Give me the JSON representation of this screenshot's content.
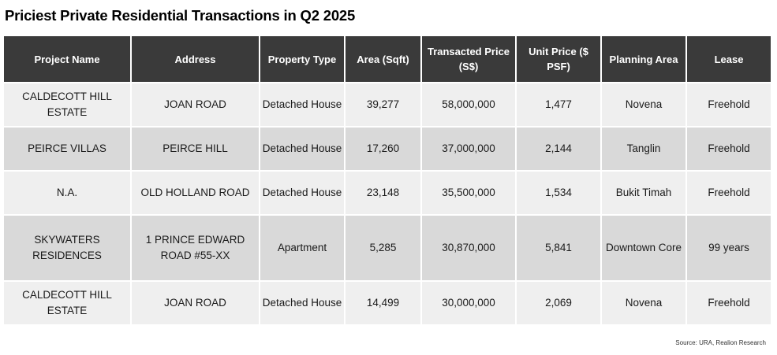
{
  "title": "Priciest Private Residential Transactions in Q2 2025",
  "headers": [
    "Project Name",
    "Address",
    "Property Type",
    "Area (Sqft)",
    "Transacted Price (S$)",
    "Unit Price ($ PSF)",
    "Planning Area",
    "Lease"
  ],
  "rows": [
    [
      "CALDECOTT HILL ESTATE",
      "JOAN ROAD",
      "Detached House",
      "39,277",
      "58,000,000",
      "1,477",
      "Novena",
      "Freehold"
    ],
    [
      "PEIRCE VILLAS",
      "PEIRCE HILL",
      "Detached House",
      "17,260",
      "37,000,000",
      "2,144",
      "Tanglin",
      "Freehold"
    ],
    [
      "N.A.",
      "OLD HOLLAND ROAD",
      "Detached House",
      "23,148",
      "35,500,000",
      "1,534",
      "Bukit Timah",
      "Freehold"
    ],
    [
      "SKYWATERS RESIDENCES",
      "1 PRINCE EDWARD ROAD #55-XX",
      "Apartment",
      "5,285",
      "30,870,000",
      "5,841",
      "Downtown Core",
      "99 years"
    ],
    [
      "CALDECOTT HILL ESTATE",
      "JOAN ROAD",
      "Detached House",
      "14,499",
      "30,000,000",
      "2,069",
      "Novena",
      "Freehold"
    ]
  ],
  "source": "Source: URA, Realion Research",
  "colors": {
    "header_bg": "#3a3a3a",
    "header_text": "#ffffff",
    "row_light": "#efefef",
    "row_dark": "#d9d9d9"
  }
}
